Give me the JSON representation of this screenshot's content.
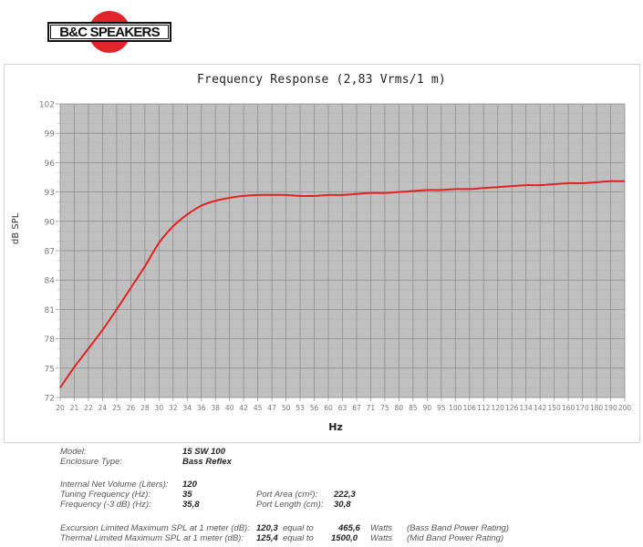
{
  "logo": {
    "text": "B&C SPEAKERS",
    "circle_color": "#e0242a"
  },
  "chart_data": {
    "type": "line",
    "title": "Frequency Response (2,83 Vrms/1 m)",
    "xlabel": "Hz",
    "ylabel": "dB SPL",
    "ylim": [
      72,
      102
    ],
    "yticks": [
      72,
      75,
      78,
      81,
      84,
      87,
      90,
      93,
      96,
      99,
      102
    ],
    "xticks": [
      "20",
      "21",
      "22",
      "24",
      "25",
      "26",
      "28",
      "30",
      "32",
      "34",
      "36",
      "38",
      "40",
      "42",
      "45",
      "47",
      "50",
      "53",
      "56",
      "60",
      "63",
      "67",
      "71",
      "75",
      "80",
      "85",
      "90",
      "95",
      "100",
      "106",
      "112",
      "120",
      "126",
      "134",
      "142",
      "150",
      "160",
      "170",
      "180",
      "190",
      "200"
    ],
    "x_scale": "log",
    "grid": true,
    "plot_background": "#c0c0c0",
    "line_color": "#e32222",
    "series": [
      {
        "name": "15 SW 100 Bass Reflex",
        "x": [
          20,
          21,
          22,
          24,
          25,
          26,
          28,
          30,
          32,
          34,
          36,
          38,
          40,
          42,
          45,
          47,
          50,
          53,
          56,
          60,
          63,
          67,
          71,
          75,
          80,
          85,
          90,
          95,
          100,
          106,
          112,
          120,
          126,
          134,
          142,
          150,
          160,
          170,
          180,
          190,
          200
        ],
        "values": [
          73.0,
          75.1,
          77.0,
          78.9,
          81.0,
          83.2,
          85.4,
          87.8,
          89.5,
          90.7,
          91.6,
          92.1,
          92.4,
          92.6,
          92.7,
          92.7,
          92.7,
          92.6,
          92.6,
          92.7,
          92.7,
          92.8,
          92.9,
          92.9,
          93.0,
          93.1,
          93.2,
          93.2,
          93.3,
          93.3,
          93.4,
          93.5,
          93.6,
          93.7,
          93.7,
          93.8,
          93.9,
          93.9,
          94.0,
          94.1,
          94.1
        ]
      }
    ]
  },
  "specs": {
    "model": {
      "label": "Model:",
      "value": "15 SW 100"
    },
    "enclosure": {
      "label": "Enclosure Type:",
      "value": "Bass Reflex"
    },
    "volume": {
      "label": "Internal  Net Volume (Liters):",
      "value": "120"
    },
    "tuning": {
      "label": "Tuning Frequency (Hz):",
      "value": "35"
    },
    "f3": {
      "label": "Frequency (-3 dB) (Hz):",
      "value": "35,8"
    },
    "port_area": {
      "label": "Port Area (cm²):",
      "value": "222,3"
    },
    "port_length": {
      "label": "Port Length (cm):",
      "value": "30,8"
    },
    "excursion": {
      "label": "Excursion Limited Maximum SPL at 1 meter (dB):",
      "value": "120,3",
      "equal": "equal to",
      "watts": "465,6",
      "unit": "Watts",
      "note": "(Bass Band Power Rating)"
    },
    "thermal": {
      "label": "Thermal Limited Maximum SPL at 1 meter (dB):",
      "value": "125,4",
      "equal": "equal to",
      "watts": "1500,0",
      "unit": "Watts",
      "note": "(Mid Band Power Rating)"
    }
  }
}
